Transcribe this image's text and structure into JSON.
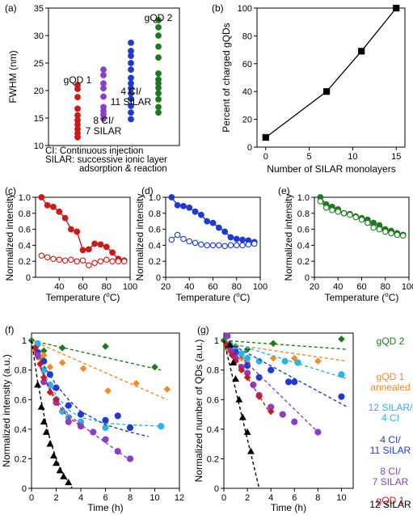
{
  "colors": {
    "red": "#cc1a1a",
    "purple": "#8a3fc7",
    "blue": "#1f3ad1",
    "green": "#1f7a1f",
    "orange": "#f08a2a",
    "cyan": "#2ab4e6",
    "black": "#000000"
  },
  "chart_data": [
    {
      "panel": "(a)",
      "type": "scatter",
      "ylabel": "FWHM (nm)",
      "ylim": [
        10,
        35
      ],
      "yticks": [
        10,
        15,
        20,
        25,
        30,
        35
      ],
      "notes": [
        "CI: Continuous injection",
        "SILAR: successive ionic layer",
        "adsorption & reaction"
      ],
      "series": [
        {
          "name": "gQD 1",
          "label_lines": [
            "gQD 1"
          ],
          "color": "red",
          "values": [
            11.5,
            12.2,
            13.0,
            13.8,
            14.6,
            15.5,
            16.7,
            18.8,
            20.3,
            21.0
          ]
        },
        {
          "name": "8 CI/ 7 SILAR",
          "label_lines": [
            "8 CI/",
            "7 SILAR"
          ],
          "color": "purple",
          "values": [
            14.9,
            15.6,
            16.3,
            17.0,
            18.9,
            20.4,
            21.3,
            22.8,
            23.8
          ]
        },
        {
          "name": "4 CI/ 11 SILAR",
          "label_lines": [
            "4 CI/",
            "11 SILAR"
          ],
          "color": "blue",
          "values": [
            14.8,
            16.0,
            17.2,
            18.5,
            19.5,
            20.4,
            21.3,
            22.3,
            23.8,
            25.0,
            26.3,
            27.2,
            28.7
          ]
        },
        {
          "name": "gQD 2",
          "label_lines": [
            "gQD 2"
          ],
          "color": "green",
          "values": [
            16.0,
            17.0,
            18.4,
            19.5,
            20.5,
            21.3,
            22.0,
            23.1,
            26.0,
            28.0,
            30.0,
            31.5,
            32.8
          ]
        }
      ]
    },
    {
      "panel": "(b)",
      "type": "line",
      "xlabel": "Number of SILAR monolayers",
      "ylabel": "Percent of charged gQDs",
      "xlim": [
        -1,
        16
      ],
      "ylim": [
        0,
        100
      ],
      "xticks": [
        0,
        5,
        10,
        15
      ],
      "yticks": [
        0,
        20,
        40,
        60,
        80,
        100
      ],
      "x": [
        0,
        7,
        11,
        15
      ],
      "y": [
        7,
        40,
        69,
        100
      ]
    },
    {
      "panel": "(c)",
      "type": "line",
      "xlabel": "Temperature (",
      "xlabel_sup": "o",
      "xlabel_end": "C)",
      "ylabel": "Normalized intensity",
      "xlim": [
        20,
        100
      ],
      "ylim": [
        0,
        1.0
      ],
      "xticks": [
        40,
        60,
        80,
        100
      ],
      "yticks": [
        0,
        0.2,
        0.4,
        0.6,
        0.8,
        1.0
      ],
      "ytick_labels": [
        "0",
        "0.2",
        "0.4",
        "0.6",
        "0.8",
        "1.0"
      ],
      "color": "red",
      "x": [
        25,
        30,
        35,
        40,
        45,
        50,
        55,
        60,
        65,
        70,
        75,
        80,
        85,
        90,
        95
      ],
      "filled": [
        1.0,
        0.9,
        0.88,
        0.82,
        0.74,
        0.6,
        0.57,
        0.34,
        0.35,
        0.42,
        0.41,
        0.38,
        0.31,
        0.23,
        0.21
      ],
      "open": [
        0.27,
        0.25,
        0.23,
        0.22,
        0.21,
        0.22,
        0.2,
        0.21,
        0.15,
        0.18,
        0.2,
        0.22,
        0.2,
        0.2,
        0.2
      ]
    },
    {
      "panel": "(d)",
      "type": "line",
      "xlabel": "Temperature (",
      "xlabel_sup": "o",
      "xlabel_end": "C)",
      "ylabel": "Normalized intensity",
      "xlim": [
        20,
        100
      ],
      "ylim": [
        0,
        1.0
      ],
      "xticks": [
        20,
        40,
        60,
        80,
        100
      ],
      "yticks": [
        0,
        0.2,
        0.4,
        0.6,
        0.8,
        1.0
      ],
      "ytick_labels": [
        "0",
        "0.2",
        "0.4",
        "0.6",
        "0.8",
        "1.0"
      ],
      "color": "blue",
      "x": [
        25,
        30,
        35,
        40,
        45,
        50,
        55,
        60,
        65,
        70,
        75,
        80,
        85,
        90,
        95
      ],
      "filled": [
        1.0,
        0.9,
        0.89,
        0.87,
        0.82,
        0.78,
        0.7,
        0.68,
        0.62,
        0.57,
        0.5,
        0.48,
        0.47,
        0.46,
        0.44
      ],
      "open": [
        0.47,
        0.53,
        0.48,
        0.45,
        0.43,
        0.41,
        0.4,
        0.4,
        0.4,
        0.39,
        0.4,
        0.4,
        0.4,
        0.41,
        0.42
      ]
    },
    {
      "panel": "(e)",
      "type": "line",
      "xlabel": "Temperature (",
      "xlabel_sup": "o",
      "xlabel_end": "C)",
      "ylabel": "Normalized intensity",
      "xlim": [
        20,
        100
      ],
      "ylim": [
        0,
        1.0
      ],
      "xticks": [
        20,
        40,
        60,
        80,
        100
      ],
      "yticks": [
        0,
        0.2,
        0.4,
        0.6,
        0.8,
        1.0
      ],
      "ytick_labels": [
        "0",
        "0.2",
        "0.4",
        "0.6",
        "0.8",
        "1.0"
      ],
      "color": "green",
      "x": [
        25,
        30,
        35,
        40,
        45,
        50,
        55,
        60,
        65,
        70,
        75,
        80,
        85,
        90,
        95
      ],
      "filled": [
        1.0,
        0.91,
        0.88,
        0.85,
        0.8,
        0.79,
        0.76,
        0.74,
        0.72,
        0.68,
        0.65,
        0.6,
        0.58,
        0.55,
        0.53
      ],
      "open": [
        0.95,
        0.87,
        0.84,
        0.82,
        0.8,
        0.78,
        0.75,
        0.72,
        0.68,
        0.62,
        0.6,
        0.57,
        0.55,
        0.53,
        0.52
      ]
    },
    {
      "panel": "(f)",
      "type": "scatter",
      "xlabel": "Time (h)",
      "ylabel": "Normalized intensity (a.u.)",
      "xlim": [
        0,
        12
      ],
      "ylim": [
        0,
        1.05
      ],
      "xticks": [
        0,
        2,
        4,
        6,
        8,
        10,
        12
      ],
      "yticks": [
        0,
        0.2,
        0.4,
        0.6,
        0.8,
        1.0
      ],
      "ytick_labels": [
        "0",
        "0.2",
        "0.4",
        "0.6",
        "0.8",
        "1"
      ],
      "series": [
        {
          "name": "gQD 2",
          "color": "green",
          "marker": "diamond",
          "x": [
            0,
            0.5,
            1.0,
            2.5,
            6,
            10
          ],
          "y": [
            1.0,
            0.97,
            0.93,
            0.95,
            0.96,
            0.82
          ],
          "fit_x": [
            0,
            10.5
          ],
          "fit_y": [
            1.0,
            0.8
          ]
        },
        {
          "name": "gQD 1 annealed",
          "color": "orange",
          "marker": "diamond",
          "x": [
            0.3,
            0.7,
            1.0,
            1.5,
            2.5,
            4.2,
            6.2,
            8.5,
            11
          ],
          "y": [
            0.93,
            0.88,
            0.9,
            0.82,
            0.85,
            0.81,
            0.66,
            0.71,
            0.67
          ],
          "fit_x": [
            0,
            11
          ],
          "fit_y": [
            1.0,
            0.6
          ]
        },
        {
          "name": "12 SILAR/ 4 CI",
          "color": "cyan",
          "marker": "circle",
          "x": [
            0.5,
            1.0,
            1.5,
            2.0,
            2.5,
            3.0,
            4.0,
            6.0,
            10.5
          ],
          "y": [
            0.98,
            0.8,
            0.7,
            0.6,
            0.52,
            0.48,
            0.45,
            0.41,
            0.42
          ],
          "fit_x": [
            0,
            1,
            2,
            3,
            4,
            6,
            8,
            10.5
          ],
          "fit_y": [
            1.0,
            0.78,
            0.63,
            0.53,
            0.48,
            0.44,
            0.43,
            0.42
          ]
        },
        {
          "name": "4 CI/ 11 SILAR",
          "color": "blue",
          "marker": "circle",
          "x": [
            0.5,
            1.0,
            1.5,
            2.0,
            3.0,
            4.0,
            6.0,
            7.0,
            8.0
          ],
          "y": [
            0.92,
            0.86,
            0.77,
            0.68,
            0.56,
            0.5,
            0.46,
            0.49,
            0.41
          ],
          "fit_x": [
            0,
            1,
            2,
            3,
            4,
            6,
            8,
            9.5
          ],
          "fit_y": [
            1.0,
            0.83,
            0.7,
            0.6,
            0.52,
            0.43,
            0.38,
            0.35
          ]
        },
        {
          "name": "8 CI/ 7 SILAR",
          "color": "purple",
          "marker": "circle",
          "x": [
            0.5,
            1.0,
            2.0,
            3.0,
            4.0,
            5.0,
            6.0,
            7.0,
            8.0
          ],
          "y": [
            0.9,
            0.72,
            0.58,
            0.45,
            0.42,
            0.38,
            0.33,
            0.25,
            0.2
          ],
          "fit_x": [
            0,
            1,
            2,
            3,
            4,
            5,
            6,
            7,
            8
          ],
          "fit_y": [
            1.0,
            0.76,
            0.6,
            0.5,
            0.43,
            0.37,
            0.31,
            0.25,
            0.19
          ]
        },
        {
          "name": "gQD 1",
          "color": "red",
          "marker": "diamond",
          "x": [
            0.3,
            0.7,
            1.0,
            1.5,
            2.0
          ],
          "y": [
            0.95,
            0.84,
            0.75,
            0.65,
            0.6
          ],
          "fit_x": [
            0,
            0.5,
            1,
            1.5,
            2,
            3,
            4
          ],
          "fit_y": [
            1.0,
            0.86,
            0.76,
            0.66,
            0.58,
            0.48,
            0.42
          ]
        },
        {
          "name": "12 SILAR",
          "color": "black",
          "marker": "triangle",
          "x": [
            0.5,
            0.8,
            1.0,
            1.2,
            1.5,
            1.8,
            2.0,
            2.3,
            2.6,
            3.0
          ],
          "y": [
            0.7,
            0.55,
            0.45,
            0.38,
            0.3,
            0.22,
            0.17,
            0.12,
            0.08,
            0.04
          ],
          "fit_x": [
            0,
            0.5,
            1,
            1.5,
            2,
            2.5,
            3,
            3.3
          ],
          "fit_y": [
            1.0,
            0.72,
            0.5,
            0.33,
            0.2,
            0.11,
            0.04,
            0.0
          ]
        }
      ]
    },
    {
      "panel": "(g)",
      "type": "scatter",
      "xlabel": "Time (h)",
      "ylabel": "Normalized number of QDs (a.u.)",
      "xlim": [
        0,
        11
      ],
      "ylim": [
        0,
        1.05
      ],
      "xticks": [
        0,
        2,
        4,
        6,
        8,
        10
      ],
      "yticks": [
        0,
        0.2,
        0.4,
        0.6,
        0.8,
        1.0
      ],
      "ytick_labels": [
        "0",
        "0.2",
        "0.4",
        "0.6",
        "0.8",
        "1"
      ],
      "series": [
        {
          "name": "gQD 2",
          "color": "green",
          "marker": "diamond",
          "x": [
            0,
            0.5,
            1.0,
            2.0,
            4.2,
            10
          ],
          "y": [
            1.0,
            0.98,
            0.96,
            0.94,
            0.98,
            1.01
          ],
          "fit_x": [
            0,
            10.5
          ],
          "fit_y": [
            1.0,
            0.94
          ]
        },
        {
          "name": "gQD 1 annealed",
          "color": "orange",
          "marker": "diamond",
          "x": [
            0.3,
            0.7,
            1.0,
            1.5,
            2.0,
            4.2,
            6.0,
            8.0
          ],
          "y": [
            0.94,
            0.91,
            0.89,
            0.88,
            0.85,
            0.88,
            0.88,
            0.86
          ],
          "fit_x": [
            0,
            10.5
          ],
          "fit_y": [
            0.98,
            0.86
          ]
        },
        {
          "name": "12 SILAR/ 4 CI",
          "color": "cyan",
          "marker": "circle",
          "x": [
            0.5,
            1.0,
            1.5,
            2.0,
            3.0,
            5.2,
            6.3,
            10.0
          ],
          "y": [
            0.97,
            0.93,
            0.91,
            0.88,
            0.86,
            0.86,
            0.85,
            0.77
          ],
          "fit_x": [
            0,
            10.5
          ],
          "fit_y": [
            1.0,
            0.74
          ]
        },
        {
          "name": "4 CI/ 11 SILAR",
          "color": "blue",
          "marker": "circle",
          "x": [
            0.5,
            1.0,
            2.0,
            3.0,
            4.0,
            5.5,
            6.0,
            10.0
          ],
          "y": [
            0.96,
            0.92,
            0.83,
            0.75,
            0.8,
            0.72,
            0.72,
            0.62
          ],
          "fit_x": [
            0,
            10.5
          ],
          "fit_y": [
            1.0,
            0.55
          ]
        },
        {
          "name": "8 CI/ 7 SILAR",
          "color": "purple",
          "marker": "circle",
          "x": [
            0.3,
            0.6,
            1.0,
            1.5,
            2.0,
            2.5,
            3.0,
            4.0,
            5.0,
            6.0,
            8.0
          ],
          "y": [
            1.03,
            0.93,
            0.88,
            0.82,
            0.78,
            0.7,
            0.63,
            0.55,
            0.5,
            0.45,
            0.38
          ],
          "fit_x": [
            0,
            8
          ],
          "fit_y": [
            1.0,
            0.38
          ]
        },
        {
          "name": "gQD 1",
          "color": "red",
          "marker": "diamond",
          "x": [
            0.3,
            0.7,
            1.0,
            1.5,
            2.0,
            3.0,
            4.0
          ],
          "y": [
            0.97,
            0.9,
            0.86,
            0.8,
            0.75,
            0.62,
            0.52
          ],
          "fit_x": [
            0,
            4
          ],
          "fit_y": [
            1.0,
            0.5
          ]
        },
        {
          "name": "12 SILAR",
          "color": "black",
          "marker": "triangle",
          "x": [
            0.5,
            0.8,
            1.0,
            1.3,
            1.6,
            2.0,
            2.3
          ],
          "y": [
            0.97,
            0.85,
            0.74,
            0.6,
            0.48,
            0.38,
            0.25
          ],
          "fit_x": [
            0,
            3.0
          ],
          "fit_y": [
            1.0,
            0.0
          ]
        }
      ]
    }
  ],
  "legend_g": [
    {
      "lines": [
        "gQD 2"
      ],
      "color": "green"
    },
    {
      "lines": [
        "gQD 1",
        "annealed"
      ],
      "color": "orange"
    },
    {
      "lines": [
        "12 SILAR/",
        "4 CI"
      ],
      "color": "cyan"
    },
    {
      "lines": [
        "4 CI/",
        "11 SILAR"
      ],
      "color": "blue"
    },
    {
      "lines": [
        "8 CI/",
        "7 SILAR"
      ],
      "color": "purple"
    },
    {
      "lines": [
        "gQD 1"
      ],
      "color": "red"
    },
    {
      "lines": [
        "12 SILAR"
      ],
      "color": "black"
    }
  ]
}
